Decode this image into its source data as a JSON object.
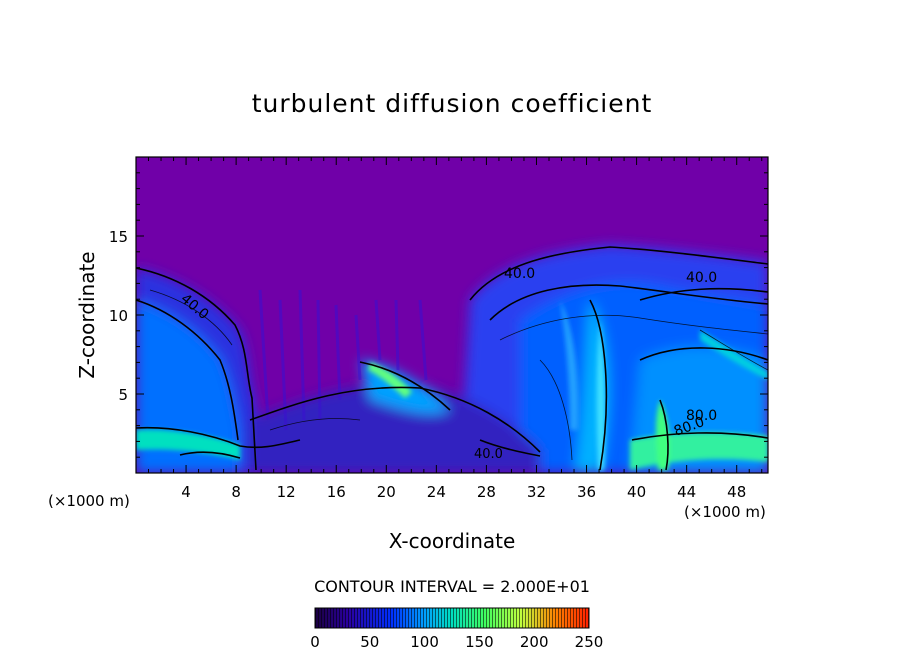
{
  "chart_data": {
    "type": "heatmap",
    "title": "turbulent diffusion coefficient",
    "xlabel": "X-coordinate",
    "ylabel": "Z-coordinate",
    "x_unit": "(×1000 m)",
    "x_unit_right": "(×1000 m)",
    "xlim": [
      0,
      50.5
    ],
    "ylim": [
      0,
      20
    ],
    "x_ticks": [
      "4",
      "8",
      "12",
      "16",
      "20",
      "24",
      "28",
      "32",
      "36",
      "40",
      "44",
      "48"
    ],
    "y_ticks": [
      "5",
      "10",
      "15"
    ],
    "contour_interval_text": "CONTOUR INTERVAL = 2.000E+01",
    "contour_labels": [
      "40.0",
      "40.0",
      "40.0",
      "40.0",
      "80.0",
      "80.0"
    ],
    "colorbar": {
      "min": 0,
      "max": 250,
      "ticks": [
        "0",
        "50",
        "100",
        "150",
        "200",
        "250"
      ],
      "colors": [
        "#1a0040",
        "#2a00a0",
        "#0030ff",
        "#00a0ff",
        "#00e0c0",
        "#40ff60",
        "#c0ff40",
        "#ff8000",
        "#ff2000"
      ]
    },
    "background_color": "#7000a8"
  }
}
